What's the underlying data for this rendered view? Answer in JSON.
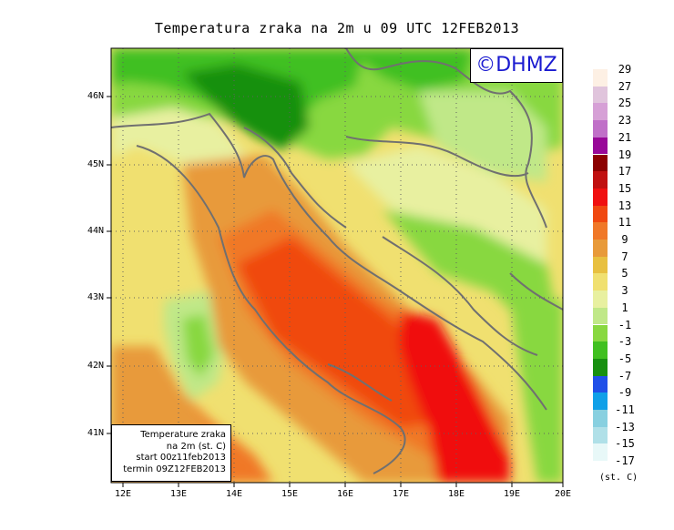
{
  "title": "Temperatura zraka na 2m u 09 UTC 12FEB2013",
  "logo": "©DHMZ",
  "info_box": {
    "line1": "Temperature zraka",
    "line2": "na 2m (st. C)",
    "line3": "start 00z11feb2013",
    "line4": "termin 09Z12FEB2013"
  },
  "lat_labels": [
    "46N",
    "45N",
    "44N",
    "43N",
    "42N",
    "41N"
  ],
  "lon_labels": [
    "12E",
    "13E",
    "14E",
    "15E",
    "16E",
    "17E",
    "18E",
    "19E",
    "20E"
  ],
  "legend": {
    "labels": [
      "29",
      "27",
      "25",
      "23",
      "21",
      "19",
      "17",
      "15",
      "13",
      "11",
      "9",
      "7",
      "5",
      "3",
      "1",
      "-1",
      "-3",
      "-5",
      "-7",
      "-9",
      "-11",
      "-13",
      "-15",
      "-17"
    ],
    "colors": [
      "#fdf0e4",
      "#e0c4dc",
      "#d6a0d6",
      "#c070c8",
      "#980898",
      "#8c0000",
      "#c01010",
      "#f01010",
      "#f04810",
      "#f07828",
      "#e89a3a",
      "#e8c040",
      "#f0e070",
      "#e8f0a0",
      "#c0e888",
      "#88d840",
      "#40c020",
      "#189010",
      "#2050e8",
      "#10a0e8",
      "#88d0e0",
      "#b0e0e8",
      "#e8f8f8"
    ],
    "unit": "(st. C)"
  }
}
